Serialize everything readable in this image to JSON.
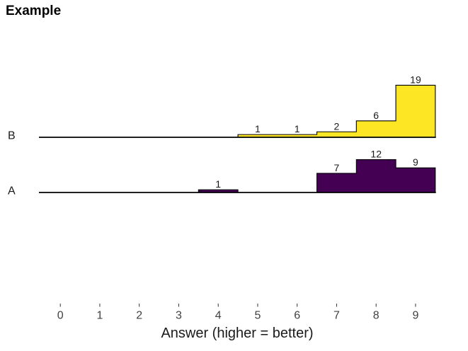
{
  "chart_data": {
    "type": "bar",
    "variant": "ridgeline_histogram",
    "title": "Example",
    "xlabel": "Answer (higher = better)",
    "x_ticks": [
      "0",
      "1",
      "2",
      "3",
      "4",
      "5",
      "6",
      "7",
      "8",
      "9"
    ],
    "x_range": [
      -0.54,
      9.5
    ],
    "bin_width": 1,
    "grid": "off",
    "legend": "none",
    "bar_outline_color": "#000000",
    "baseline_color": "#000000",
    "count_label_color": "#1a1a1a",
    "tick_label_color": "#404040",
    "rows": [
      {
        "label": "B",
        "fill": "#FDE725",
        "bins": [
          {
            "center": 5,
            "count": 1
          },
          {
            "center": 6,
            "count": 1
          },
          {
            "center": 7,
            "count": 2
          },
          {
            "center": 8,
            "count": 6
          },
          {
            "center": 9,
            "count": 19
          }
        ]
      },
      {
        "label": "A",
        "fill": "#440154",
        "bins": [
          {
            "center": 4,
            "count": 1
          },
          {
            "center": 7,
            "count": 7
          },
          {
            "center": 8,
            "count": 12
          },
          {
            "center": 9,
            "count": 9
          }
        ]
      }
    ]
  }
}
